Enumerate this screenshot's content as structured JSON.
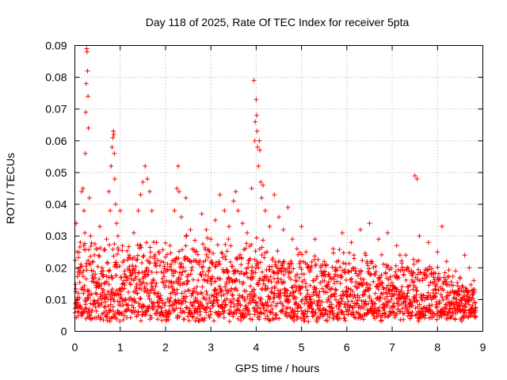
{
  "colors": {
    "points": "#ff0000",
    "frame": "#000000",
    "grid": "#a0a0a0",
    "background": "#ffffff"
  },
  "chart_data": {
    "type": "scatter",
    "title": "Day 118 of 2025, Rate Of TEC Index for receiver 5pta",
    "xlabel": "GPS time / hours",
    "ylabel": "ROTI / TECUs",
    "xlim": [
      0,
      9
    ],
    "ylim": [
      0,
      0.09
    ],
    "xticks": [
      "0",
      "1",
      "2",
      "3",
      "4",
      "5",
      "6",
      "7",
      "8",
      "9"
    ],
    "yticks": [
      "0",
      "0.01",
      "0.02",
      "0.03",
      "0.04",
      "0.05",
      "0.06",
      "0.07",
      "0.08",
      "0.09"
    ],
    "grid": true,
    "marker": "plus",
    "series": [
      {
        "name": "ROTI",
        "points": [
          [
            0.03,
            0.034
          ],
          [
            0.05,
            0.025
          ],
          [
            0.08,
            0.012
          ],
          [
            0.1,
            0.018
          ],
          [
            0.12,
            0.028
          ],
          [
            0.15,
            0.044
          ],
          [
            0.18,
            0.045
          ],
          [
            0.2,
            0.038
          ],
          [
            0.22,
            0.031
          ],
          [
            0.23,
            0.056
          ],
          [
            0.24,
            0.069
          ],
          [
            0.25,
            0.078
          ],
          [
            0.26,
            0.089
          ],
          [
            0.27,
            0.088
          ],
          [
            0.28,
            0.082
          ],
          [
            0.29,
            0.074
          ],
          [
            0.3,
            0.064
          ],
          [
            0.32,
            0.042
          ],
          [
            0.35,
            0.03
          ],
          [
            0.4,
            0.022
          ],
          [
            0.45,
            0.018
          ],
          [
            0.5,
            0.026
          ],
          [
            0.55,
            0.033
          ],
          [
            0.6,
            0.02
          ],
          [
            0.65,
            0.015
          ],
          [
            0.7,
            0.029
          ],
          [
            0.75,
            0.044
          ],
          [
            0.78,
            0.038
          ],
          [
            0.8,
            0.052
          ],
          [
            0.82,
            0.058
          ],
          [
            0.84,
            0.061
          ],
          [
            0.85,
            0.063
          ],
          [
            0.86,
            0.062
          ],
          [
            0.87,
            0.056
          ],
          [
            0.88,
            0.048
          ],
          [
            0.9,
            0.04
          ],
          [
            0.92,
            0.034
          ],
          [
            0.95,
            0.03
          ],
          [
            1.0,
            0.038
          ],
          [
            1.05,
            0.027
          ],
          [
            1.1,
            0.019
          ],
          [
            1.2,
            0.024
          ],
          [
            1.3,
            0.031
          ],
          [
            1.4,
            0.038
          ],
          [
            1.45,
            0.043
          ],
          [
            1.5,
            0.047
          ],
          [
            1.55,
            0.052
          ],
          [
            1.6,
            0.048
          ],
          [
            1.65,
            0.044
          ],
          [
            1.7,
            0.038
          ],
          [
            1.8,
            0.028
          ],
          [
            1.9,
            0.022
          ],
          [
            2.0,
            0.019
          ],
          [
            2.1,
            0.027
          ],
          [
            2.2,
            0.038
          ],
          [
            2.25,
            0.045
          ],
          [
            2.28,
            0.052
          ],
          [
            2.3,
            0.044
          ],
          [
            2.35,
            0.036
          ],
          [
            2.45,
            0.042
          ],
          [
            2.55,
            0.032
          ],
          [
            2.65,
            0.025
          ],
          [
            2.8,
            0.037
          ],
          [
            2.9,
            0.032
          ],
          [
            3.0,
            0.029
          ],
          [
            3.1,
            0.035
          ],
          [
            3.2,
            0.043
          ],
          [
            3.3,
            0.038
          ],
          [
            3.4,
            0.033
          ],
          [
            3.5,
            0.041
          ],
          [
            3.55,
            0.044
          ],
          [
            3.6,
            0.038
          ],
          [
            3.7,
            0.034
          ],
          [
            3.8,
            0.031
          ],
          [
            3.9,
            0.045
          ],
          [
            3.95,
            0.079
          ],
          [
            3.97,
            0.06
          ],
          [
            3.98,
            0.066
          ],
          [
            4.0,
            0.073
          ],
          [
            4.01,
            0.068
          ],
          [
            4.02,
            0.063
          ],
          [
            4.03,
            0.058
          ],
          [
            4.05,
            0.052
          ],
          [
            4.07,
            0.06
          ],
          [
            4.08,
            0.057
          ],
          [
            4.1,
            0.047
          ],
          [
            4.12,
            0.042
          ],
          [
            4.15,
            0.046
          ],
          [
            4.2,
            0.038
          ],
          [
            4.3,
            0.033
          ],
          [
            4.4,
            0.043
          ],
          [
            4.5,
            0.036
          ],
          [
            4.6,
            0.032
          ],
          [
            4.7,
            0.039
          ],
          [
            4.8,
            0.029
          ],
          [
            4.9,
            0.026
          ],
          [
            5.0,
            0.033
          ],
          [
            5.1,
            0.025
          ],
          [
            5.3,
            0.029
          ],
          [
            5.5,
            0.022
          ],
          [
            5.7,
            0.026
          ],
          [
            5.9,
            0.031
          ],
          [
            6.1,
            0.028
          ],
          [
            6.3,
            0.032
          ],
          [
            6.5,
            0.034
          ],
          [
            6.7,
            0.029
          ],
          [
            6.9,
            0.031
          ],
          [
            7.1,
            0.027
          ],
          [
            7.3,
            0.024
          ],
          [
            7.5,
            0.049
          ],
          [
            7.55,
            0.048
          ],
          [
            7.6,
            0.03
          ],
          [
            7.8,
            0.028
          ],
          [
            8.0,
            0.025
          ],
          [
            8.1,
            0.033
          ],
          [
            8.2,
            0.022
          ],
          [
            8.4,
            0.019
          ],
          [
            8.5,
            0.017
          ],
          [
            8.6,
            0.024
          ],
          [
            8.7,
            0.02
          ],
          [
            8.8,
            0.016
          ]
        ],
        "background_band": {
          "x_start": 0.0,
          "x_end": 8.85,
          "step": 0.004,
          "floor_min": 0.003,
          "floor_max": 0.006,
          "upper_profile": [
            [
              0.0,
              0.026
            ],
            [
              0.5,
              0.026
            ],
            [
              1.0,
              0.025
            ],
            [
              1.5,
              0.026
            ],
            [
              2.0,
              0.025
            ],
            [
              2.5,
              0.027
            ],
            [
              3.0,
              0.027
            ],
            [
              3.5,
              0.027
            ],
            [
              4.0,
              0.027
            ],
            [
              4.5,
              0.025
            ],
            [
              5.0,
              0.024
            ],
            [
              5.5,
              0.022
            ],
            [
              6.0,
              0.023
            ],
            [
              6.5,
              0.023
            ],
            [
              7.0,
              0.022
            ],
            [
              7.5,
              0.021
            ],
            [
              8.0,
              0.019
            ],
            [
              8.5,
              0.016
            ],
            [
              8.85,
              0.013
            ]
          ]
        }
      }
    ]
  }
}
